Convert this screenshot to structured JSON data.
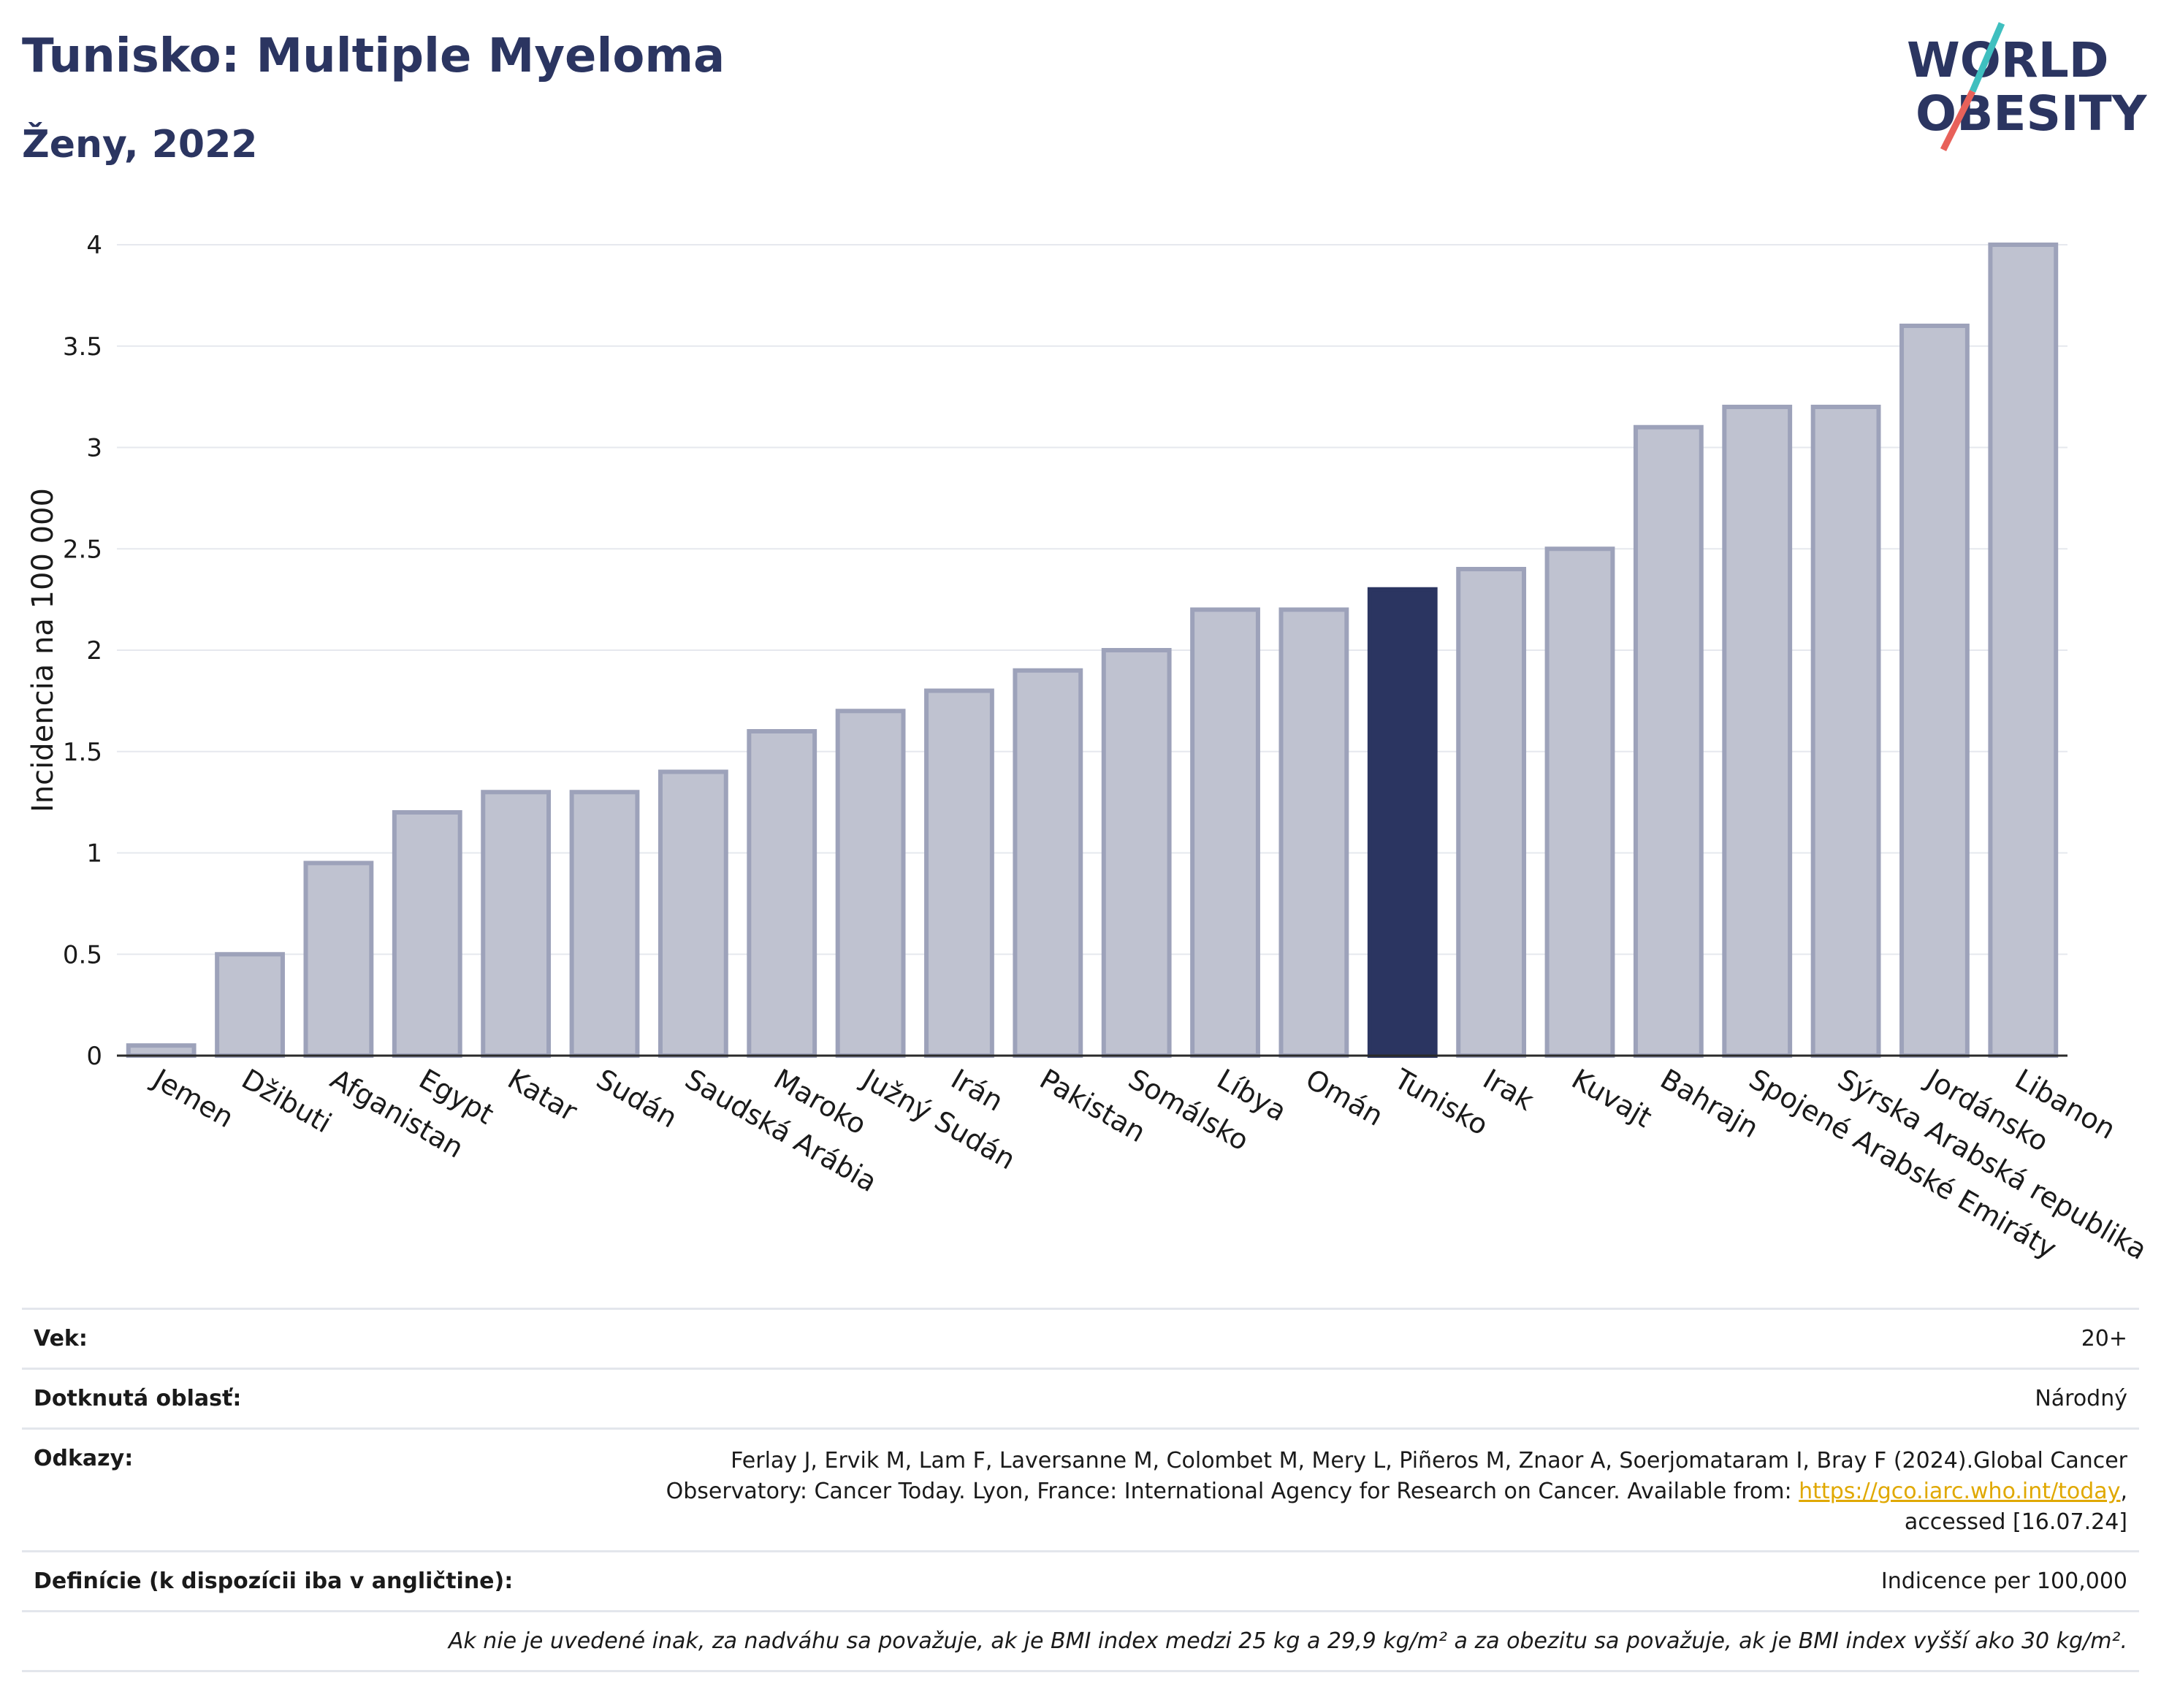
{
  "header": {
    "title": "Tunisko: Multiple Myeloma",
    "subtitle": "Ženy, 2022"
  },
  "logo": {
    "line1": "WORLD",
    "line2": "OBESITY"
  },
  "colors": {
    "bar": "#bfc2d0",
    "bar_border": "#9da2ba",
    "highlight": "#2b3561",
    "accent_teal": "#3fbfbf",
    "accent_red": "#e8615a"
  },
  "chart_data": {
    "type": "bar",
    "ylabel": "Incidencia na 100 000",
    "xlabel": "",
    "ylim": [
      0,
      4
    ],
    "yticks": [
      "0",
      "0.5",
      "1",
      "1.5",
      "2",
      "2.5",
      "3",
      "3.5",
      "4"
    ],
    "grid": true,
    "highlight": "Tunisko",
    "categories": [
      "Jemen",
      "Džibuti",
      "Afganistan",
      "Egypt",
      "Katar",
      "Sudán",
      "Saudská Arábia",
      "Maroko",
      "Južný Sudán",
      "Irán",
      "Pakistan",
      "Somálsko",
      "Líbya",
      "Omán",
      "Tunisko",
      "Irak",
      "Kuvajt",
      "Bahrajn",
      "Spojené Arabské Emiráty",
      "Sýrska Arabská republika",
      "Jordánsko",
      "Libanon"
    ],
    "values": [
      0.05,
      0.5,
      0.95,
      1.2,
      1.3,
      1.3,
      1.4,
      1.6,
      1.7,
      1.8,
      1.9,
      2.0,
      2.2,
      2.2,
      2.3,
      2.4,
      2.5,
      3.1,
      3.2,
      3.2,
      3.6,
      4.0
    ]
  },
  "info": {
    "age_label": "Vek:",
    "age_value": "20+",
    "area_label": "Dotknutá oblasť:",
    "area_value": "Národný",
    "refs_label": "Odkazy:",
    "refs_line1": "Ferlay J, Ervik M, Lam F, Laversanne M, Colombet M, Mery L, Piñeros M, Znaor A, Soerjomataram I, Bray F (2024).Global Cancer",
    "refs_line2": "Observatory: Cancer Today. Lyon, France: International Agency for Research on Cancer. Available from: ",
    "refs_link": "https://gco.iarc.who.int/today",
    "refs_line2_end": ",",
    "refs_line3": "accessed [16.07.24]",
    "def_label": "Definície (k dispozícii iba v angličtine):",
    "def_value": "Indicence per 100,000",
    "note": "Ak nie je uvedené inak, za nadváhu sa považuje, ak je BMI index medzi 25 kg a 29,9 kg/m² a za obezitu sa považuje, ak je BMI index vyšší ako 30 kg/m²."
  }
}
